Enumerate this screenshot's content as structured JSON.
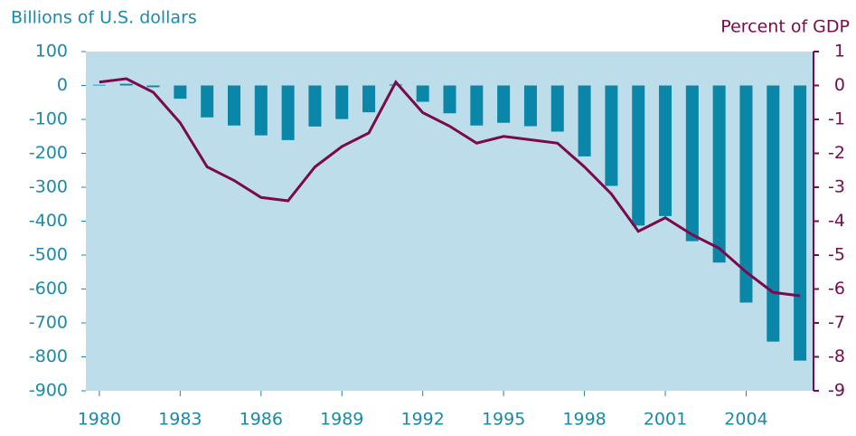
{
  "chart_data": {
    "type": "bar",
    "y_label": "Billions of U.S. dollars",
    "y2_label": "Percent of GDP",
    "x": [
      1980,
      1981,
      1982,
      1983,
      1984,
      1985,
      1986,
      1987,
      1988,
      1989,
      1990,
      1991,
      1992,
      1993,
      1994,
      1995,
      1996,
      1997,
      1998,
      1999,
      2000,
      2001,
      2002,
      2003,
      2004,
      2005,
      2006
    ],
    "xlim": [
      1979.5,
      2006.5
    ],
    "xticks": [
      1980,
      1983,
      1986,
      1989,
      1992,
      1995,
      1998,
      2001,
      2004
    ],
    "ylim": [
      -900,
      100
    ],
    "yticks": [
      100,
      0,
      -100,
      -200,
      -300,
      -400,
      -500,
      -600,
      -700,
      -800,
      -900
    ],
    "y2lim": [
      -9,
      1
    ],
    "y2ticks": [
      1,
      0,
      -1,
      -2,
      -3,
      -4,
      -5,
      -6,
      -7,
      -8,
      -9
    ],
    "plot_background": "#bcdde9",
    "series": [
      {
        "type": "bar",
        "axis": "y",
        "color": "#0a86a8",
        "values": [
          2,
          5,
          -5,
          -39,
          -94,
          -118,
          -147,
          -161,
          -121,
          -99,
          -79,
          3,
          -48,
          -82,
          -118,
          -110,
          -120,
          -136,
          -209,
          -296,
          -413,
          -385,
          -459,
          -522,
          -640,
          -755,
          -811
        ]
      },
      {
        "type": "line",
        "axis": "y2",
        "color": "#7a0a4a",
        "values": [
          0.1,
          0.2,
          -0.2,
          -1.1,
          -2.4,
          -2.8,
          -3.3,
          -3.4,
          -2.4,
          -1.8,
          -1.4,
          0.1,
          -0.8,
          -1.2,
          -1.7,
          -1.5,
          -1.6,
          -1.7,
          -2.4,
          -3.2,
          -4.3,
          -3.9,
          -4.4,
          -4.8,
          -5.5,
          -6.1,
          -6.2
        ]
      }
    ]
  }
}
